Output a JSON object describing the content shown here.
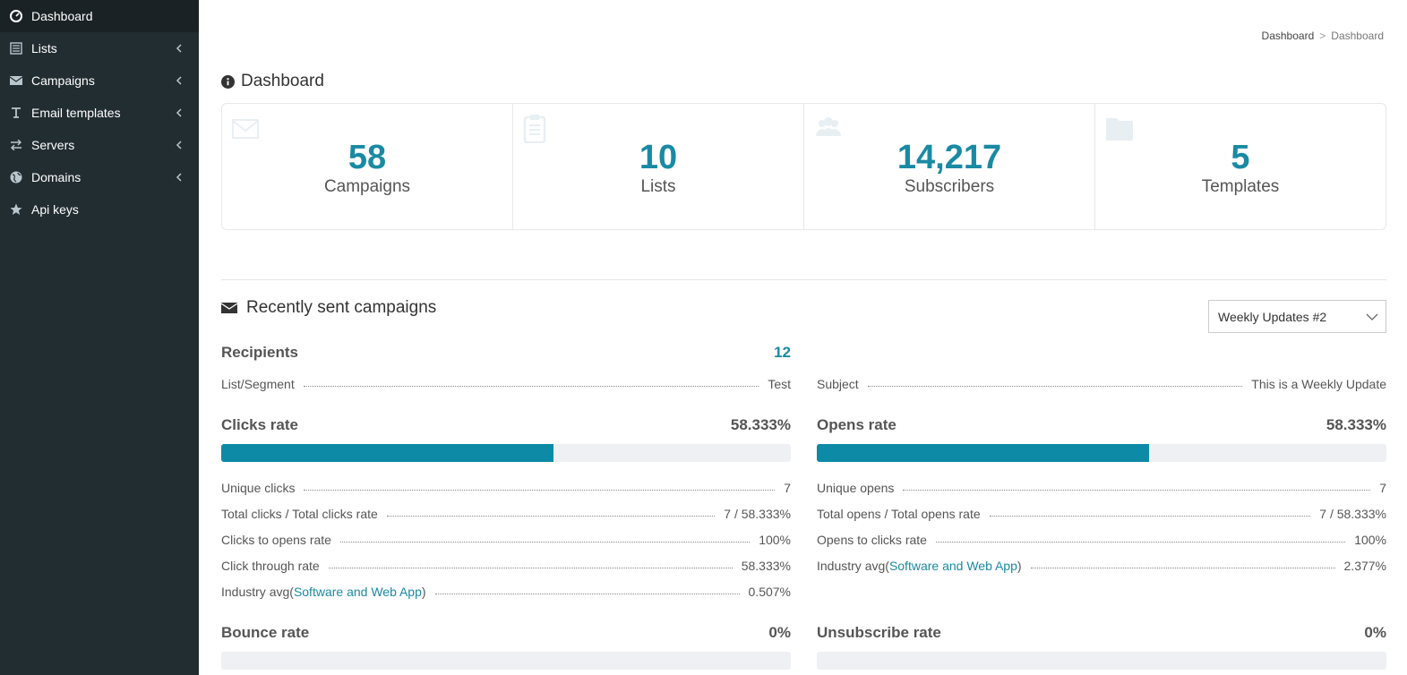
{
  "sidebar": {
    "items": [
      {
        "label": "Dashboard",
        "icon": "dashboard-icon",
        "active": true,
        "chevron": false
      },
      {
        "label": "Lists",
        "icon": "list-icon",
        "active": false,
        "chevron": true
      },
      {
        "label": "Campaigns",
        "icon": "envelope-icon",
        "active": false,
        "chevron": true
      },
      {
        "label": "Email templates",
        "icon": "text-icon",
        "active": false,
        "chevron": true
      },
      {
        "label": "Servers",
        "icon": "exchange-icon",
        "active": false,
        "chevron": true
      },
      {
        "label": "Domains",
        "icon": "globe-icon",
        "active": false,
        "chevron": true
      },
      {
        "label": "Api keys",
        "icon": "star-icon",
        "active": false,
        "chevron": false
      }
    ]
  },
  "breadcrumb": {
    "parent": "Dashboard",
    "separator": ">",
    "current": "Dashboard"
  },
  "page_title": "Dashboard",
  "stats": [
    {
      "value": "58",
      "caption": "Campaigns",
      "icon": "envelope-icon"
    },
    {
      "value": "10",
      "caption": "Lists",
      "icon": "clipboard-icon"
    },
    {
      "value": "14,217",
      "caption": "Subscribers",
      "icon": "users-icon"
    },
    {
      "value": "5",
      "caption": "Templates",
      "icon": "folder-icon"
    }
  ],
  "recent": {
    "title": "Recently sent campaigns",
    "campaign_select": "Weekly Updates #2",
    "recipients_label": "Recipients",
    "recipients_value": "12",
    "list_segment_label": "List/Segment",
    "list_segment_value": "Test",
    "subject_label": "Subject",
    "subject_value": "This is a Weekly Update",
    "clicks": {
      "title": "Clicks rate",
      "value": "58.333%",
      "fill_fraction": 0.58333,
      "rows": [
        {
          "k": "Unique clicks",
          "v": "7"
        },
        {
          "k": "Total clicks / Total clicks rate",
          "v": "7 / 58.333%"
        },
        {
          "k": "Clicks to opens rate",
          "v": "100%"
        },
        {
          "k": "Click through rate",
          "v": "58.333%"
        }
      ],
      "industry_prefix": "Industry avg(",
      "industry_link": "Software and Web App",
      "industry_suffix": ")",
      "industry_value": "0.507%"
    },
    "opens": {
      "title": "Opens rate",
      "value": "58.333%",
      "fill_fraction": 0.58333,
      "rows": [
        {
          "k": "Unique opens",
          "v": "7"
        },
        {
          "k": "Total opens / Total opens rate",
          "v": "7 / 58.333%"
        },
        {
          "k": "Opens to clicks rate",
          "v": "100%"
        }
      ],
      "industry_prefix": "Industry avg(",
      "industry_link": "Software and Web App",
      "industry_suffix": ")",
      "industry_value": "2.377%"
    },
    "bounce": {
      "title": "Bounce rate",
      "value": "0%",
      "fill_fraction": 0
    },
    "unsubscribe": {
      "title": "Unsubscribe rate",
      "value": "0%",
      "fill_fraction": 0
    }
  },
  "colors": {
    "accent": "#1a8aa3",
    "sidebar_bg": "#222d32",
    "bar_fill": "#0c8aa6"
  }
}
